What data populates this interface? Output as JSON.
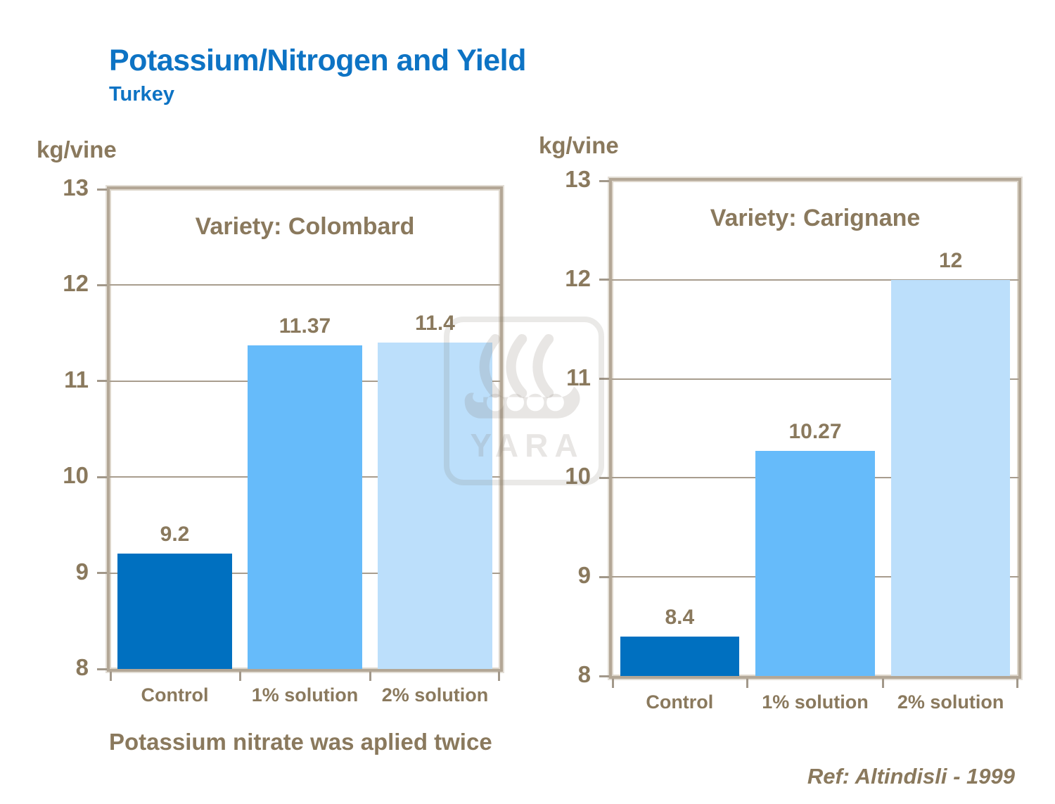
{
  "slide": {
    "title": "Potassium/Nitrogen and Yield",
    "subtitle": "Turkey",
    "note": "Potassium nitrate was aplied twice",
    "reference": "Ref: Altindisli - 1999",
    "watermark_text": "YARA"
  },
  "colors": {
    "title_blue": "#0d73c4",
    "text_brown": "#8a795d",
    "frame_tan": "#b3a796",
    "gridline": "#a89d8e",
    "bar_dark_blue": "#0070c0",
    "bar_medium_blue": "#66bbfa",
    "bar_light_blue": "#bcdffb"
  },
  "chart_data": [
    {
      "type": "bar",
      "title": "Variety: Colombard",
      "unit_label": "kg/vine",
      "categories": [
        "Control",
        "1% solution",
        "2% solution"
      ],
      "values": [
        9.2,
        11.37,
        11.4
      ],
      "value_labels": [
        "9.2",
        "11.37",
        "11.4"
      ],
      "ylim": [
        8,
        13
      ],
      "yticks": [
        13,
        12,
        11,
        10,
        9,
        8
      ],
      "bar_colors": [
        "#0070c0",
        "#66bbfa",
        "#bcdffb"
      ],
      "grid": true,
      "legend": "none"
    },
    {
      "type": "bar",
      "title": "Variety: Carignane",
      "unit_label": "kg/vine",
      "categories": [
        "Control",
        "1% solution",
        "2% solution"
      ],
      "values": [
        8.4,
        10.27,
        12
      ],
      "value_labels": [
        "8.4",
        "10.27",
        "12"
      ],
      "ylim": [
        8,
        13
      ],
      "yticks": [
        13,
        12,
        11,
        10,
        9,
        8
      ],
      "bar_colors": [
        "#0070c0",
        "#66bbfa",
        "#bcdffb"
      ],
      "grid": true,
      "legend": "none"
    }
  ]
}
